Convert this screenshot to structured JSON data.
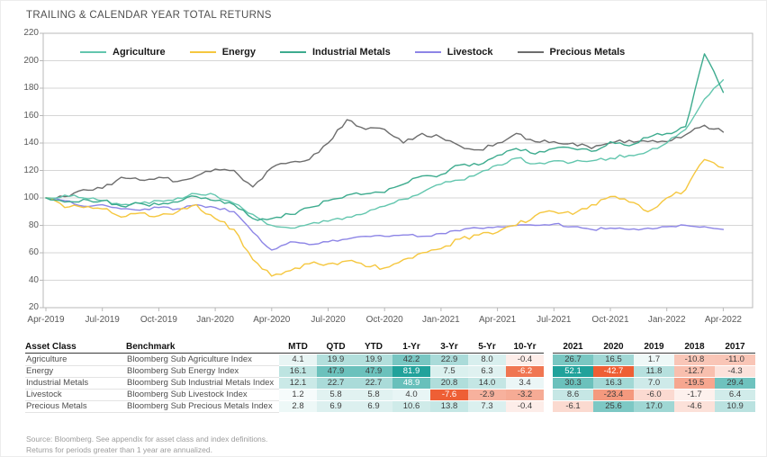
{
  "title": "TRAILING & CALENDAR YEAR TOTAL RETURNS",
  "chart_data": {
    "type": "line",
    "title": "TRAILING & CALENDAR YEAR TOTAL RETURNS",
    "xlabel": "",
    "ylabel": "",
    "ylim": [
      20,
      220
    ],
    "y_ticks": [
      220,
      200,
      180,
      160,
      140,
      120,
      100,
      80,
      60,
      40,
      20
    ],
    "x_ticks": [
      "Apr-2019",
      "Jul-2019",
      "Oct-2019",
      "Jan-2020",
      "Apr-2020",
      "Jul-2020",
      "Oct-2020",
      "Jan-2021",
      "Apr-2021",
      "Jul-2021",
      "Oct-2021",
      "Jan-2022",
      "Apr-2022"
    ],
    "months_per_tick": 3,
    "grid": "horizontal",
    "legend_position": "top",
    "base_value": 100,
    "series": [
      {
        "name": "Agriculture",
        "color": "#63c6ae",
        "jitter": 1.3,
        "values": [
          100,
          102,
          100,
          98,
          95,
          96,
          98,
          100,
          103,
          102,
          96,
          88,
          80,
          78,
          81,
          83,
          86,
          89,
          94,
          99,
          104,
          110,
          113,
          118,
          124,
          129,
          125,
          127,
          126,
          127,
          129,
          131,
          134,
          140,
          150,
          172,
          186
        ]
      },
      {
        "name": "Energy",
        "color": "#f5c73f",
        "jitter": 1.7,
        "values": [
          100,
          93,
          93,
          92,
          86,
          89,
          87,
          90,
          95,
          85,
          77,
          55,
          43,
          47,
          52,
          52,
          54,
          50,
          49,
          55,
          60,
          63,
          70,
          73,
          75,
          80,
          87,
          90,
          88,
          95,
          101,
          97,
          90,
          100,
          106,
          128,
          122
        ]
      },
      {
        "name": "Industrial Metals",
        "color": "#3dab8e",
        "jitter": 1.5,
        "values": [
          100,
          97,
          99,
          98,
          94,
          96,
          95,
          97,
          101,
          98,
          95,
          85,
          85,
          88,
          93,
          98,
          102,
          103,
          104,
          110,
          116,
          117,
          124,
          124,
          131,
          136,
          132,
          136,
          136,
          134,
          141,
          138,
          144,
          147,
          152,
          205,
          177
        ]
      },
      {
        "name": "Livestock",
        "color": "#8d85e6",
        "jitter": 0.9,
        "values": [
          100,
          98,
          94,
          95,
          92,
          91,
          93,
          92,
          95,
          93,
          90,
          75,
          62,
          68,
          66,
          68,
          70,
          72,
          72,
          73,
          72,
          74,
          76,
          78,
          79,
          80,
          80,
          81,
          79,
          77,
          78,
          77,
          78,
          79,
          80,
          79,
          77
        ]
      },
      {
        "name": "Precious Metals",
        "color": "#6d6d6d",
        "jitter": 1.4,
        "values": [
          100,
          101,
          106,
          107,
          115,
          113,
          115,
          112,
          116,
          121,
          120,
          108,
          122,
          126,
          128,
          140,
          157,
          150,
          150,
          140,
          147,
          144,
          138,
          135,
          140,
          147,
          141,
          141,
          140,
          136,
          140,
          142,
          141,
          141,
          146,
          153,
          148
        ]
      }
    ]
  },
  "table": {
    "col_headers": [
      "Asset Class",
      "Benchmark",
      "MTD",
      "QTD",
      "YTD",
      "1-Yr",
      "3-Yr",
      "5-Yr",
      "10-Yr"
    ],
    "year_headers": [
      "2021",
      "2020",
      "2019",
      "2018",
      "2017"
    ],
    "heatmap_colors": {
      "positive": "#21a29b",
      "negative": "#ee5f35"
    },
    "rows": [
      {
        "asset": "Agriculture",
        "benchmark": "Bloomberg Sub Agriculture Index",
        "returns": [
          4.1,
          19.9,
          19.9,
          42.2,
          22.9,
          8.0,
          -0.4
        ],
        "years": [
          26.7,
          16.5,
          1.7,
          -10.8,
          -11.0
        ]
      },
      {
        "asset": "Energy",
        "benchmark": "Bloomberg Sub Energy Index",
        "returns": [
          16.1,
          47.9,
          47.9,
          81.9,
          7.5,
          6.3,
          -6.2
        ],
        "years": [
          52.1,
          -42.7,
          11.8,
          -12.7,
          -4.3
        ]
      },
      {
        "asset": "Industrial Metals",
        "benchmark": "Bloomberg Sub Industrial Metals Index",
        "returns": [
          12.1,
          22.7,
          22.7,
          48.9,
          20.8,
          14.0,
          3.4
        ],
        "years": [
          30.3,
          16.3,
          7.0,
          -19.5,
          29.4
        ]
      },
      {
        "asset": "Livestock",
        "benchmark": "Bloomberg Sub Livestock Index",
        "returns": [
          1.2,
          5.8,
          5.8,
          4.0,
          -7.6,
          -2.9,
          -3.2
        ],
        "years": [
          8.6,
          -23.4,
          -6.0,
          -1.7,
          6.4
        ]
      },
      {
        "asset": "Precious Metals",
        "benchmark": "Bloomberg Sub Precious Metals Index",
        "returns": [
          2.8,
          6.9,
          6.9,
          10.6,
          13.8,
          7.3,
          -0.4
        ],
        "years": [
          -6.1,
          25.6,
          17.0,
          -4.6,
          10.9
        ]
      }
    ]
  },
  "footnotes": [
    "Source: Bloomberg. See appendix for asset class and index definitions.",
    "Returns for periods greater than 1 year are annualized."
  ]
}
